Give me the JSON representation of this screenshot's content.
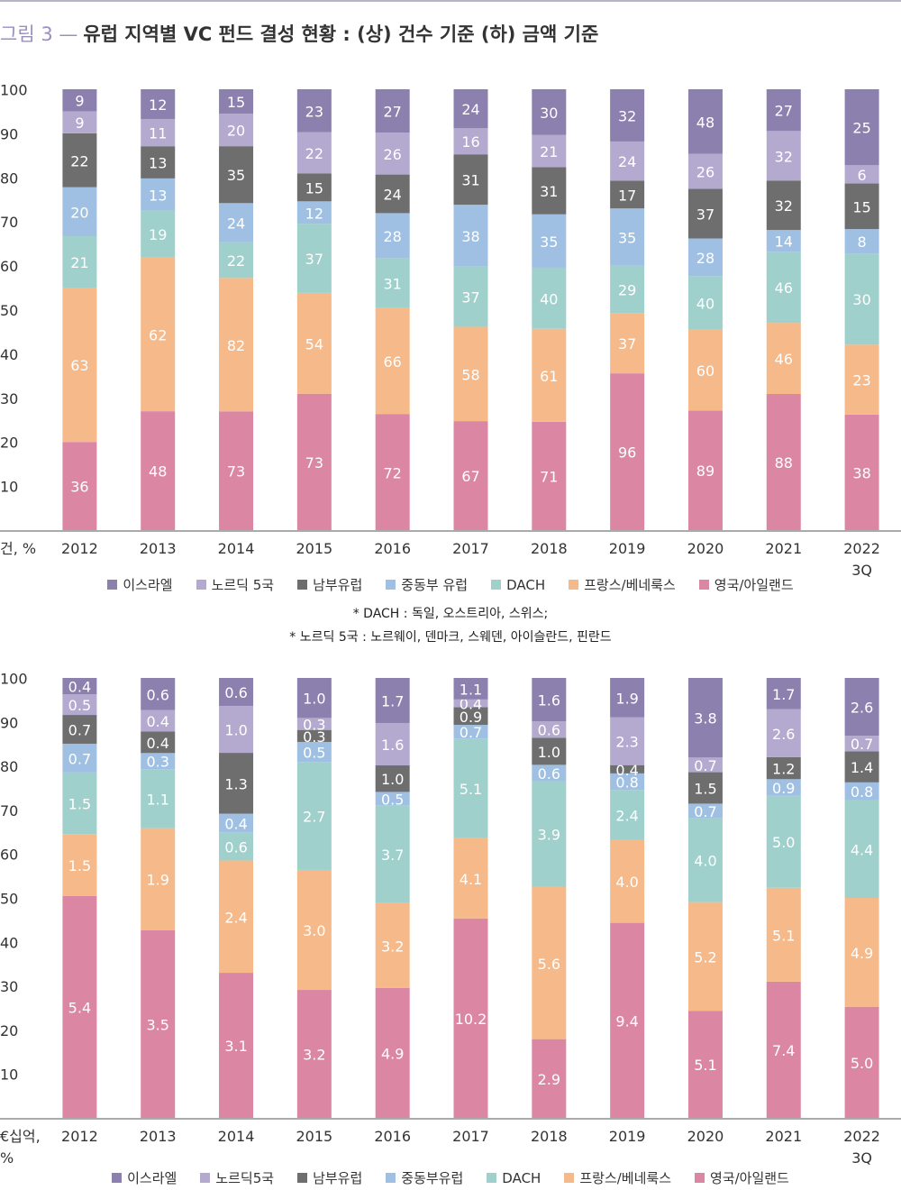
{
  "title_prefix": "그림 3 —",
  "title": "유럽 지역별 VC 펀드 결성 현황 : (상) 건수 기준 (하) 금액 기준",
  "notes": [
    "* DACH : 독일, 오스트리아, 스위스;",
    "* 노르딕 5국 : 노르웨이, 덴마크, 스웨덴, 아이슬란드, 핀란드"
  ],
  "chart_data": [
    {
      "type": "bar",
      "stack": "percent",
      "axis_label": "건, %",
      "categories": [
        "2012",
        "2013",
        "2014",
        "2015",
        "2016",
        "2017",
        "2018",
        "2019",
        "2020",
        "2021",
        "2022\n3Q"
      ],
      "ylim": [
        0,
        100
      ],
      "yticks": [
        10,
        20,
        30,
        40,
        50,
        60,
        70,
        80,
        90,
        100
      ],
      "series": [
        {
          "name": "영국/아일랜드",
          "color": "#db87a4",
          "values": [
            36,
            48,
            73,
            73,
            72,
            67,
            71,
            96,
            89,
            88,
            38
          ]
        },
        {
          "name": "프랑스/베네룩스",
          "color": "#f5b98a",
          "values": [
            63,
            62,
            82,
            54,
            66,
            58,
            61,
            37,
            60,
            46,
            23
          ]
        },
        {
          "name": "DACH",
          "color": "#9fd0cc",
          "values": [
            21,
            19,
            22,
            37,
            31,
            37,
            40,
            29,
            40,
            46,
            30
          ]
        },
        {
          "name": "중동부 유럽",
          "color": "#9fc0e2",
          "values": [
            20,
            13,
            24,
            12,
            28,
            38,
            35,
            35,
            28,
            14,
            8
          ]
        },
        {
          "name": "남부유럽",
          "color": "#6e6e6e",
          "values": [
            22,
            13,
            35,
            15,
            24,
            31,
            31,
            17,
            37,
            32,
            15
          ]
        },
        {
          "name": "노르딕 5국",
          "color": "#b4aad0",
          "values": [
            9,
            11,
            20,
            22,
            26,
            16,
            21,
            24,
            26,
            32,
            6
          ]
        },
        {
          "name": "이스라엘",
          "color": "#8b80ae",
          "values": [
            9,
            12,
            15,
            23,
            27,
            24,
            30,
            32,
            48,
            27,
            25
          ]
        }
      ]
    },
    {
      "type": "bar",
      "stack": "percent",
      "axis_label": "€십억,\n%",
      "categories": [
        "2012",
        "2013",
        "2014",
        "2015",
        "2016",
        "2017",
        "2018",
        "2019",
        "2020",
        "2021",
        "2022\n3Q"
      ],
      "ylim": [
        0,
        100
      ],
      "yticks": [
        10,
        20,
        30,
        40,
        50,
        60,
        70,
        80,
        90,
        100
      ],
      "series": [
        {
          "name": "영국/아일랜드",
          "color": "#db87a4",
          "values": [
            5.4,
            3.5,
            3.1,
            3.2,
            4.9,
            10.2,
            2.9,
            9.4,
            5.1,
            7.4,
            5.0
          ],
          "value_labels": [
            "5.4",
            "3.5",
            "3.1",
            "3.2",
            "4.9",
            "10.2",
            "2.9",
            "9.4",
            "5.1",
            "7.4",
            "5.0"
          ]
        },
        {
          "name": "프랑스/베네룩스",
          "color": "#f5b98a",
          "values": [
            1.5,
            1.9,
            2.4,
            3.0,
            3.2,
            4.1,
            5.6,
            4.0,
            5.2,
            5.1,
            4.9
          ],
          "value_labels": [
            "1.5",
            "1.9",
            "2.4",
            "3.0",
            "3.2",
            "4.1",
            "5.6",
            "4.0",
            "5.2",
            "5.1",
            "4.9"
          ]
        },
        {
          "name": "DACH",
          "color": "#9fd0cc",
          "values": [
            1.5,
            1.1,
            0.6,
            2.7,
            3.7,
            5.1,
            3.9,
            2.4,
            4.0,
            5.0,
            4.4
          ],
          "value_labels": [
            "1.5",
            "1.1",
            "0.6",
            "2.7",
            "3.7",
            "5.1",
            "3.9",
            "2.4",
            "4.0",
            "5.0",
            "4.4"
          ]
        },
        {
          "name": "중동부유럽",
          "color": "#9fc0e2",
          "values": [
            0.7,
            0.3,
            0.4,
            0.5,
            0.5,
            0.7,
            0.6,
            0.8,
            0.7,
            0.9,
            0.8
          ],
          "value_labels": [
            "0.7",
            "0.3",
            "0.4",
            "0.5",
            "0.5",
            "0.7",
            "0.6",
            "0.8",
            "0.7",
            "0.9",
            "0.8"
          ]
        },
        {
          "name": "남부유럽",
          "color": "#6e6e6e",
          "values": [
            0.7,
            0.4,
            1.3,
            0.3,
            1.0,
            0.9,
            1.0,
            0.4,
            1.5,
            1.2,
            1.4
          ],
          "value_labels": [
            "0.7",
            "0.4",
            "1.3",
            "0.3",
            "1.0",
            "0.9",
            "1.0",
            "0.4",
            "1.5",
            "1.2",
            "1.4"
          ]
        },
        {
          "name": "노르딕5국",
          "color": "#b4aad0",
          "values": [
            0.5,
            0.4,
            1.0,
            0.3,
            1.6,
            0.4,
            0.6,
            2.3,
            0.7,
            2.6,
            0.7
          ],
          "value_labels": [
            "0.5",
            "0.4",
            "1.0",
            "0.3",
            "1.6",
            "0.4",
            "0.6",
            "2.3",
            "0.7",
            "2.6",
            "0.7"
          ]
        },
        {
          "name": "이스라엘",
          "color": "#8b80ae",
          "values": [
            0.4,
            0.6,
            0.6,
            1.0,
            1.7,
            1.1,
            1.6,
            1.9,
            3.8,
            1.7,
            2.6
          ],
          "value_labels": [
            "0.4",
            "0.6",
            "0.6",
            "1.0",
            "1.7",
            "1.1",
            "1.6",
            "1.9",
            "3.8",
            "1.7",
            "2.6"
          ]
        }
      ]
    }
  ]
}
